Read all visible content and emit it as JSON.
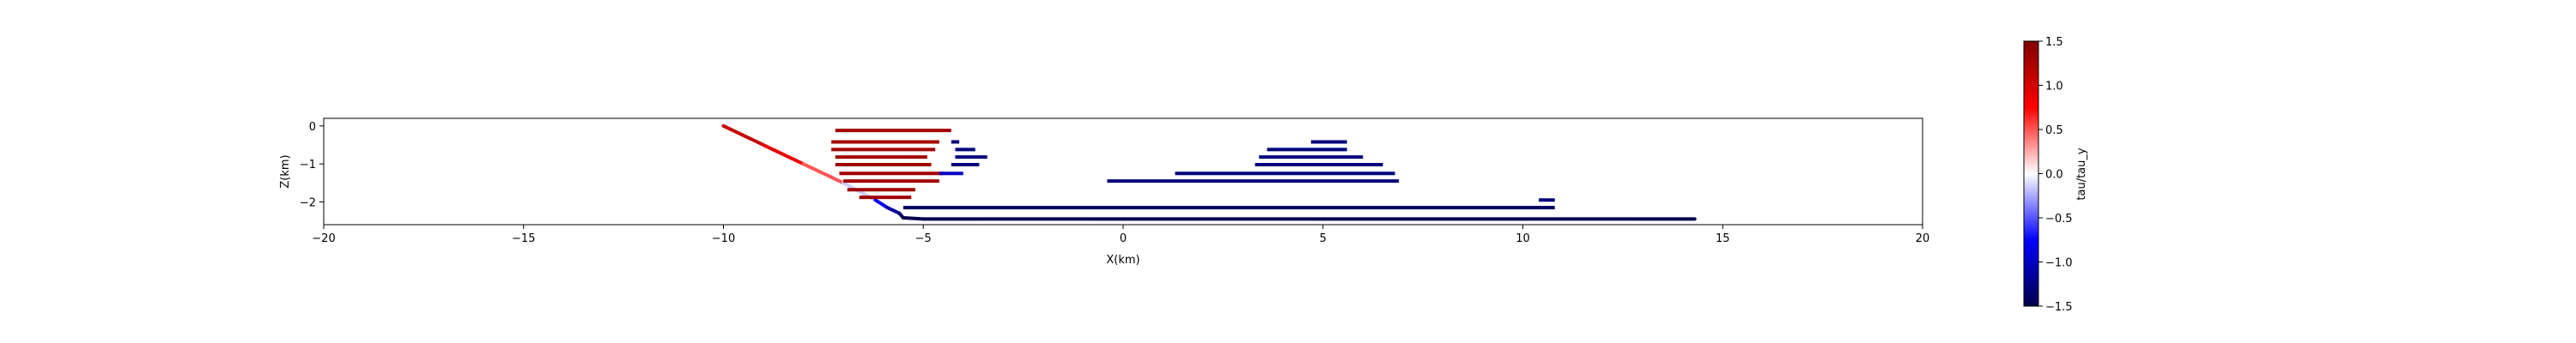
{
  "chart_data": {
    "type": "heatmap",
    "xlabel": "X(km)",
    "ylabel": "Z(km)",
    "xlim": [
      -20,
      20
    ],
    "ylim": [
      -2.6,
      0.2
    ],
    "xticks": [
      -20,
      -15,
      -10,
      -5,
      0,
      5,
      10,
      15,
      20
    ],
    "xtick_labels": [
      "−20",
      "−15",
      "−10",
      "−5",
      "0",
      "5",
      "10",
      "15",
      "20"
    ],
    "yticks": [
      0,
      -1,
      -2
    ],
    "ytick_labels": [
      "0",
      "−1",
      "−2"
    ],
    "grid": false,
    "fault_trace": {
      "x": [
        -10.0,
        -9.0,
        -8.0,
        -7.0,
        -6.2,
        -5.9,
        -5.6,
        -5.5,
        -5.0,
        0,
        5,
        10,
        14.3
      ],
      "tau_ratio": [
        1.2,
        1.0,
        0.7,
        0.3,
        -0.6,
        -1.0,
        -1.3,
        -1.5,
        -1.5,
        -1.5,
        -1.5,
        -1.5,
        -1.5
      ],
      "z": [
        0.0,
        -0.5,
        -1.0,
        -1.5,
        -1.95,
        -2.15,
        -2.3,
        -2.42,
        -2.45,
        -2.45,
        -2.45,
        -2.45,
        -2.45
      ]
    },
    "segments": [
      {
        "x0": -7.2,
        "x1": -4.3,
        "z": -0.12,
        "tau_ratio": 1.3
      },
      {
        "x0": -7.3,
        "x1": -4.6,
        "z": -0.42,
        "tau_ratio": 1.3
      },
      {
        "x0": -7.3,
        "x1": -4.7,
        "z": -0.62,
        "tau_ratio": 1.3
      },
      {
        "x0": -7.2,
        "x1": -4.9,
        "z": -0.82,
        "tau_ratio": 1.3
      },
      {
        "x0": -7.2,
        "x1": -4.8,
        "z": -1.02,
        "tau_ratio": 1.3
      },
      {
        "x0": -7.1,
        "x1": -4.5,
        "z": -1.25,
        "tau_ratio": 1.3
      },
      {
        "x0": -7.0,
        "x1": -4.6,
        "z": -1.45,
        "tau_ratio": 1.3
      },
      {
        "x0": -6.9,
        "x1": -5.2,
        "z": -1.68,
        "tau_ratio": 1.3
      },
      {
        "x0": -6.6,
        "x1": -5.3,
        "z": -1.88,
        "tau_ratio": 1.3
      },
      {
        "x0": -4.3,
        "x1": -4.1,
        "z": -0.42,
        "tau_ratio": -1.3
      },
      {
        "x0": -4.2,
        "x1": -3.7,
        "z": -0.62,
        "tau_ratio": -1.3
      },
      {
        "x0": -4.2,
        "x1": -3.4,
        "z": -0.82,
        "tau_ratio": -1.3
      },
      {
        "x0": -4.3,
        "x1": -3.6,
        "z": -1.02,
        "tau_ratio": -1.3
      },
      {
        "x0": -4.6,
        "x1": -4.0,
        "z": -1.25,
        "tau_ratio": -1.0
      },
      {
        "x0": 4.7,
        "x1": 5.6,
        "z": -0.42,
        "tau_ratio": -1.3
      },
      {
        "x0": 3.6,
        "x1": 5.6,
        "z": -0.62,
        "tau_ratio": -1.3
      },
      {
        "x0": 3.4,
        "x1": 6.0,
        "z": -0.82,
        "tau_ratio": -1.3
      },
      {
        "x0": 3.3,
        "x1": 6.5,
        "z": -1.02,
        "tau_ratio": -1.3
      },
      {
        "x0": 1.3,
        "x1": 6.8,
        "z": -1.25,
        "tau_ratio": -1.3
      },
      {
        "x0": -0.4,
        "x1": 6.9,
        "z": -1.45,
        "tau_ratio": -1.3
      },
      {
        "x0": 10.4,
        "x1": 10.8,
        "z": -1.95,
        "tau_ratio": -1.3
      },
      {
        "x0": -5.5,
        "x1": 10.8,
        "z": -2.15,
        "tau_ratio": -1.4
      }
    ],
    "colorbar": {
      "label": "tau/tau_y",
      "min": -1.5,
      "max": 1.5,
      "ticks": [
        1.5,
        1.0,
        0.5,
        0.0,
        -0.5,
        -1.0,
        -1.5
      ],
      "tick_labels": [
        "1.5",
        "1.0",
        "0.5",
        "0.0",
        "−0.5",
        "−1.0",
        "−1.5"
      ],
      "colormap": "seismic"
    }
  }
}
